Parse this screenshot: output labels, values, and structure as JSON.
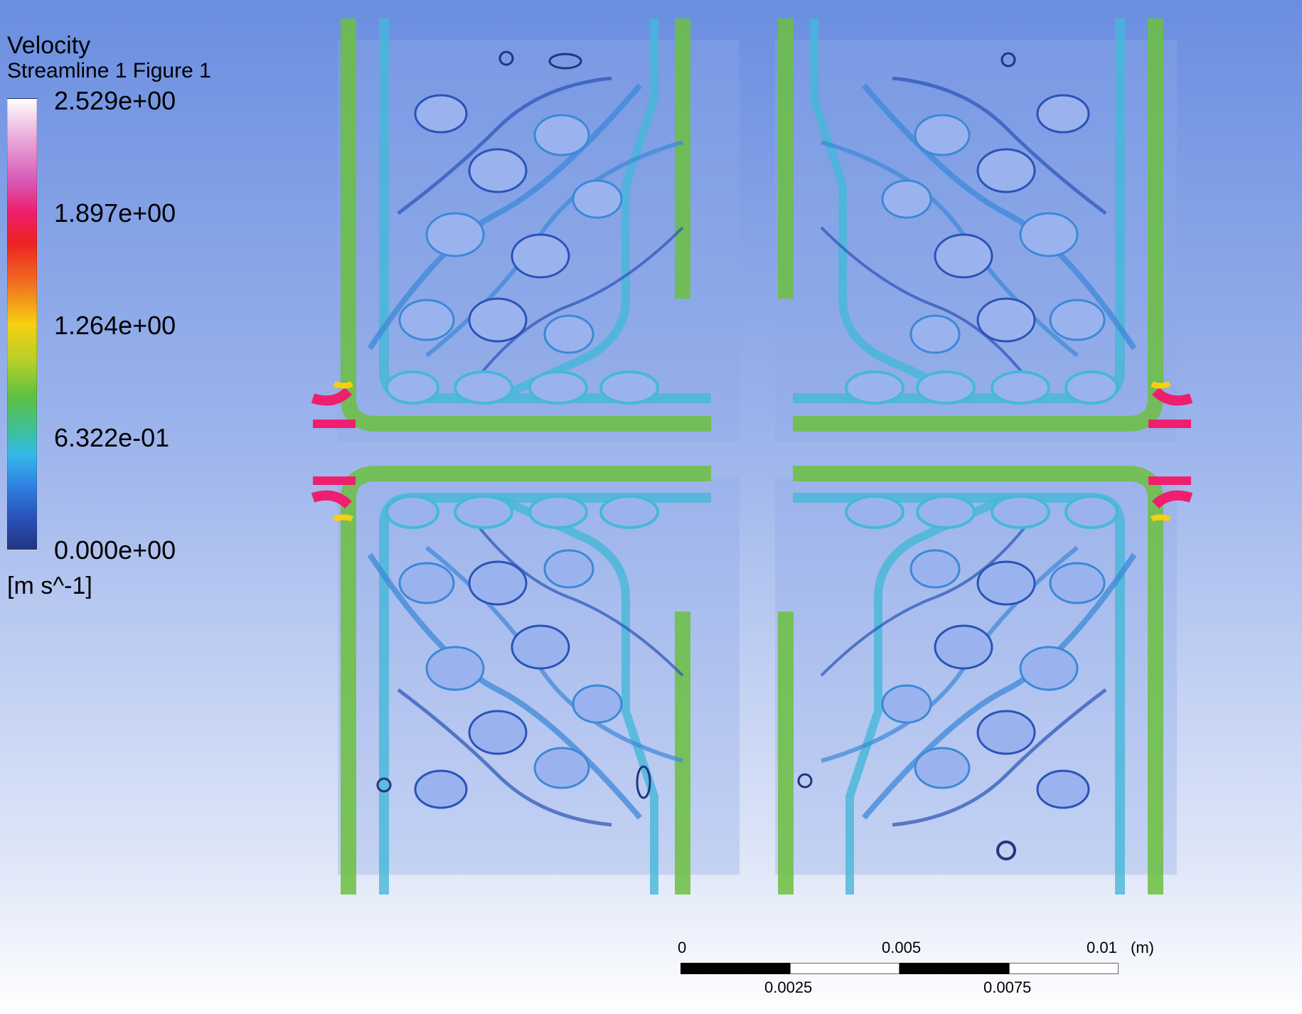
{
  "legend": {
    "title": "Velocity",
    "subtitle": "Streamline 1 Figure 1",
    "ticks": [
      "2.529e+00",
      "1.897e+00",
      "1.264e+00",
      "6.322e-01",
      "0.000e+00"
    ],
    "units": "[m s^-1]"
  },
  "scale_bar": {
    "top_labels": [
      "0",
      "0.005",
      "0.01"
    ],
    "unit": "(m)",
    "bottom_labels": [
      "0.0025",
      "0.0075"
    ]
  },
  "colors": {
    "background_top": "#6a8ee0",
    "background_bottom": "#ffffff",
    "low_speed": "#2a3f9a",
    "mid_speed": "#3cc0e0",
    "channel_speed": "#6cc040",
    "high_speed": "#ee1f6e"
  }
}
